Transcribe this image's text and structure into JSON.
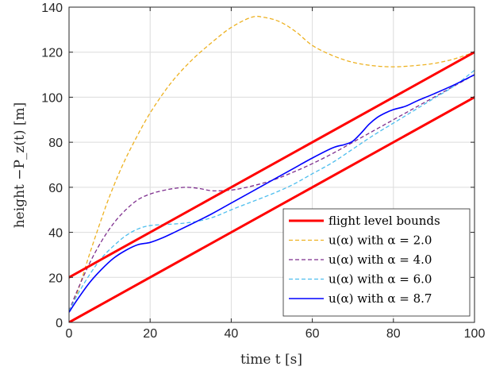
{
  "chart_data": {
    "type": "line",
    "title": "",
    "xlabel": "time t [s]",
    "ylabel": "height  −P_z(t) [m]",
    "xlim": [
      0,
      100
    ],
    "ylim": [
      0,
      140
    ],
    "xticks": [
      0,
      20,
      40,
      60,
      80,
      100
    ],
    "yticks": [
      0,
      20,
      40,
      60,
      80,
      100,
      120,
      140
    ],
    "grid": true,
    "legend_position": "bottom-right",
    "series": [
      {
        "name": "flight level bounds",
        "style": "solid",
        "color": "#ff0000",
        "width": 3,
        "x": [
          0,
          100
        ],
        "y": [
          20,
          120
        ]
      },
      {
        "name": "",
        "style": "solid",
        "color": "#ff0000",
        "width": 3,
        "x": [
          0,
          100
        ],
        "y": [
          0,
          100
        ]
      },
      {
        "name": "u(α) with α = 2.0",
        "style": "dashed",
        "color": "#edb120",
        "width": 1.3,
        "x": [
          0,
          2,
          5,
          8,
          10,
          13,
          16,
          20,
          25,
          30,
          35,
          40,
          45,
          48,
          52,
          56,
          60,
          65,
          70,
          75,
          80,
          85,
          90,
          95,
          100
        ],
        "y": [
          5,
          13,
          30,
          46,
          56,
          69,
          80,
          93,
          106,
          116,
          124,
          131,
          135.5,
          135.5,
          133.5,
          129,
          123,
          118.5,
          115.5,
          114,
          113.5,
          114,
          115,
          117,
          120
        ]
      },
      {
        "name": "u(α) with α = 4.0",
        "style": "dashed",
        "color": "#7e2f8e",
        "width": 1.3,
        "x": [
          0,
          2,
          5,
          8,
          11,
          14,
          17,
          20,
          23,
          26,
          29,
          32,
          35,
          38,
          41,
          45,
          50,
          55,
          60,
          65,
          70,
          75,
          80,
          85,
          90,
          95,
          100
        ],
        "y": [
          5,
          14,
          26,
          36,
          44,
          50,
          54.5,
          57,
          58.5,
          59.5,
          60,
          59.5,
          58.5,
          58.5,
          59,
          60.5,
          63,
          66.5,
          70.5,
          75,
          80,
          85,
          90,
          95,
          100,
          105,
          110
        ]
      },
      {
        "name": "u(α) with α = 6.0",
        "style": "dashed",
        "color": "#4dbeee",
        "width": 1.3,
        "x": [
          0,
          2,
          5,
          8,
          11,
          14,
          17,
          20,
          24,
          28,
          32,
          36,
          40,
          45,
          50,
          55,
          60,
          65,
          70,
          75,
          80,
          85,
          90,
          95,
          100
        ],
        "y": [
          5,
          12,
          21,
          28.5,
          34,
          38.5,
          41.5,
          43,
          43.5,
          44,
          45,
          47,
          50,
          53.5,
          57,
          61,
          66,
          71,
          77,
          83,
          88.5,
          94,
          99.5,
          105,
          112
        ]
      },
      {
        "name": "u(α) with α = 8.7",
        "style": "solid",
        "color": "#0000ff",
        "width": 1.6,
        "x": [
          0,
          2,
          5,
          8,
          11,
          14,
          17,
          20,
          23,
          26,
          30,
          35,
          40,
          45,
          50,
          55,
          60,
          65,
          68,
          70,
          72,
          74,
          76,
          78,
          80,
          83,
          86,
          90,
          95,
          100
        ],
        "y": [
          4.5,
          10,
          17.5,
          23.5,
          28.5,
          32,
          34.5,
          35.5,
          37.5,
          40,
          43.5,
          48,
          53,
          58,
          63,
          68,
          73,
          77.5,
          79,
          80.5,
          84,
          88,
          91,
          93,
          94.5,
          96,
          98.5,
          101.5,
          105.5,
          110
        ]
      }
    ]
  }
}
